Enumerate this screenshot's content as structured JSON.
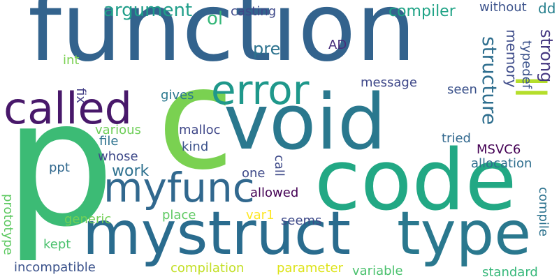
{
  "words": {
    "function": {
      "text": "function",
      "color": "#33638d"
    },
    "p": {
      "text": "p",
      "color": "#3cbb75"
    },
    "code": {
      "text": "code",
      "color": "#22a884"
    },
    "void": {
      "text": "void",
      "color": "#2a788e"
    },
    "mystruct": {
      "text": "mystruct",
      "color": "#2a6c8e"
    },
    "type": {
      "text": "type",
      "color": "#2a788e"
    },
    "c": {
      "text": "c",
      "color": "#7ad151"
    },
    "called": {
      "text": "called",
      "color": "#48186a"
    },
    "error": {
      "text": "error",
      "color": "#1f988b"
    },
    "myfunc": {
      "text": "myfunc",
      "color": "#31688e"
    },
    "ll": {
      "text": "ll",
      "color": "#b5de2b"
    },
    "argument": {
      "text": "argument",
      "color": "#1f9e89"
    },
    "compiler": {
      "text": "compiler",
      "color": "#20a386"
    },
    "ol": {
      "text": "ol",
      "color": "#35b779"
    },
    "casting": {
      "text": "casting",
      "color": "#3e4989"
    },
    "without": {
      "text": "without",
      "color": "#3b528b"
    },
    "dd": {
      "text": "dd",
      "color": "#27808e"
    },
    "strong": {
      "text": "strong",
      "color": "#453781"
    },
    "structure": {
      "text": "structure",
      "color": "#2e6e8e"
    },
    "memory": {
      "text": "memory",
      "color": "#3e4c8a"
    },
    "typedef": {
      "text": "typedef",
      "color": "#3b528b"
    },
    "pre": {
      "text": "pre",
      "color": "#2c728e"
    },
    "AD": {
      "text": "AD",
      "color": "#472d7b"
    },
    "int": {
      "text": "int",
      "color": "#7ad151"
    },
    "message": {
      "text": "message",
      "color": "#3f4889"
    },
    "seen": {
      "text": "seen",
      "color": "#3b528b"
    },
    "fix": {
      "text": "fix",
      "color": "#433e85"
    },
    "gives": {
      "text": "gives",
      "color": "#2a788e"
    },
    "various": {
      "text": "various",
      "color": "#6ece58"
    },
    "malloc": {
      "text": "malloc",
      "color": "#3f4788"
    },
    "file": {
      "text": "file",
      "color": "#2c728e"
    },
    "kind": {
      "text": "kind",
      "color": "#3b528b"
    },
    "tried": {
      "text": "tried",
      "color": "#31688e"
    },
    "whose": {
      "text": "whose",
      "color": "#3e4989"
    },
    "MSVC6": {
      "text": "MSVC6",
      "color": "#440154"
    },
    "work": {
      "text": "work",
      "color": "#2d708e"
    },
    "call": {
      "text": "call",
      "color": "#3e4a89"
    },
    "allocation": {
      "text": "allocation",
      "color": "#2e6e8e"
    },
    "ppt": {
      "text": "ppt",
      "color": "#31688e"
    },
    "one": {
      "text": "one",
      "color": "#3e4989"
    },
    "allowed": {
      "text": "allowed",
      "color": "#440154"
    },
    "compile": {
      "text": "compile",
      "color": "#2c728e"
    },
    "prototype": {
      "text": "prototype",
      "color": "#5ec962"
    },
    "generic": {
      "text": "generic",
      "color": "#73d056"
    },
    "place": {
      "text": "place",
      "color": "#5ec962"
    },
    "var1": {
      "text": "var1",
      "color": "#fde725"
    },
    "seems": {
      "text": "seems",
      "color": "#3e4a89"
    },
    "kept": {
      "text": "kept",
      "color": "#4ac16d"
    },
    "incompatible": {
      "text": "incompatible",
      "color": "#3b528b"
    },
    "compilation": {
      "text": "compilation",
      "color": "#c2df23"
    },
    "parameter": {
      "text": "parameter",
      "color": "#dde318"
    },
    "variable": {
      "text": "variable",
      "color": "#4ac16d"
    },
    "standard": {
      "text": "standard",
      "color": "#35b779"
    }
  }
}
